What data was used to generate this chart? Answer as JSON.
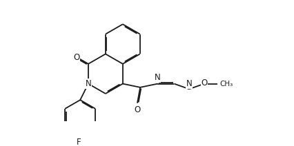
{
  "background_color": "#ffffff",
  "line_color": "#1a1a1a",
  "lw": 1.3,
  "fig_w": 4.26,
  "fig_h": 2.12,
  "dpi": 100,
  "xlim": [
    0.0,
    10.0
  ],
  "ylim": [
    0.0,
    5.0
  ]
}
